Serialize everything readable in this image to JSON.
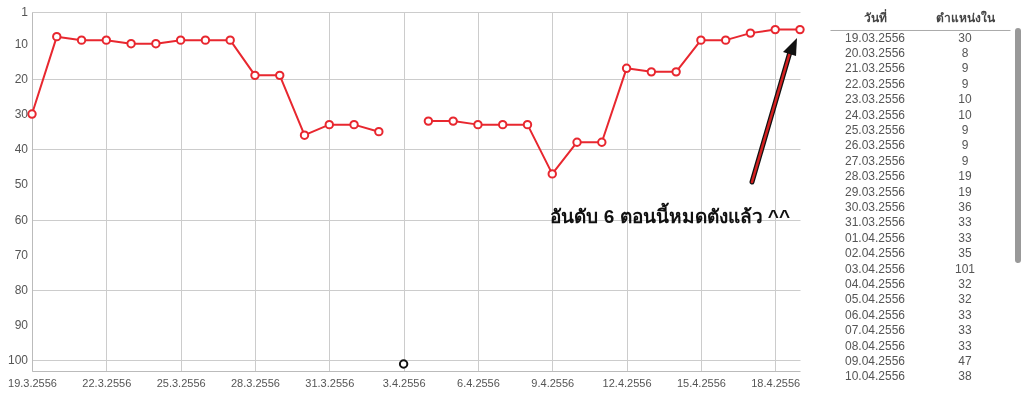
{
  "chart_data": [
    {
      "type": "line",
      "categories": [
        "19.3.2556",
        null,
        null,
        "22.3.2556",
        null,
        null,
        "25.3.2556",
        null,
        null,
        "28.3.2556",
        null,
        null,
        "31.3.2556",
        null,
        null,
        "3.4.2556",
        null,
        null,
        "6.4.2556",
        null,
        null,
        "9.4.2556",
        null,
        null,
        "12.4.2556",
        null,
        null,
        "15.4.2556",
        null,
        null,
        "18.4.2556",
        null
      ],
      "series": [
        {
          "color": "#e8272f",
          "values": [
            30,
            8,
            9,
            9,
            10,
            10,
            9,
            9,
            9,
            19,
            19,
            36,
            33,
            33,
            35,
            null,
            32,
            32,
            33,
            33,
            33,
            47,
            38,
            38,
            17,
            18,
            18,
            9,
            9,
            7,
            6,
            6
          ]
        },
        {
          "type": "scatter",
          "color": "#111111",
          "values": [
            null,
            null,
            null,
            null,
            null,
            null,
            null,
            null,
            null,
            null,
            null,
            null,
            null,
            null,
            null,
            101,
            null,
            null,
            null,
            null,
            null,
            null,
            null,
            null,
            null,
            null,
            null,
            null,
            null,
            null,
            null,
            null
          ]
        }
      ],
      "ylim": [
        103,
        1
      ],
      "yticks": [
        1,
        10,
        20,
        30,
        40,
        50,
        60,
        70,
        80,
        90,
        100
      ],
      "grid": true,
      "marker": "circle",
      "line_style": "solid",
      "annotations": [
        "อันดับ 6 ตอนนี้หมดตังแล้ว ^^"
      ]
    },
    {
      "type": "other",
      "categories": [
        "19.03.2556",
        "20.03.2556",
        "21.03.2556",
        "22.03.2556",
        "23.03.2556",
        "24.03.2556",
        "25.03.2556",
        "26.03.2556",
        "27.03.2556",
        "28.03.2556",
        "29.03.2556",
        "30.03.2556",
        "31.03.2556",
        "01.04.2556",
        "02.04.2556",
        "03.04.2556",
        "04.04.2556",
        "05.04.2556",
        "06.04.2556",
        "07.04.2556",
        "08.04.2556",
        "09.04.2556",
        "10.04.2556"
      ],
      "values": [
        30,
        8,
        9,
        9,
        10,
        10,
        9,
        9,
        9,
        19,
        19,
        36,
        33,
        33,
        35,
        101,
        32,
        32,
        33,
        33,
        33,
        47,
        38
      ],
      "data_labels": true,
      "annotations": [
        "วันที่",
        "ตำแหน่งใน"
      ]
    }
  ]
}
